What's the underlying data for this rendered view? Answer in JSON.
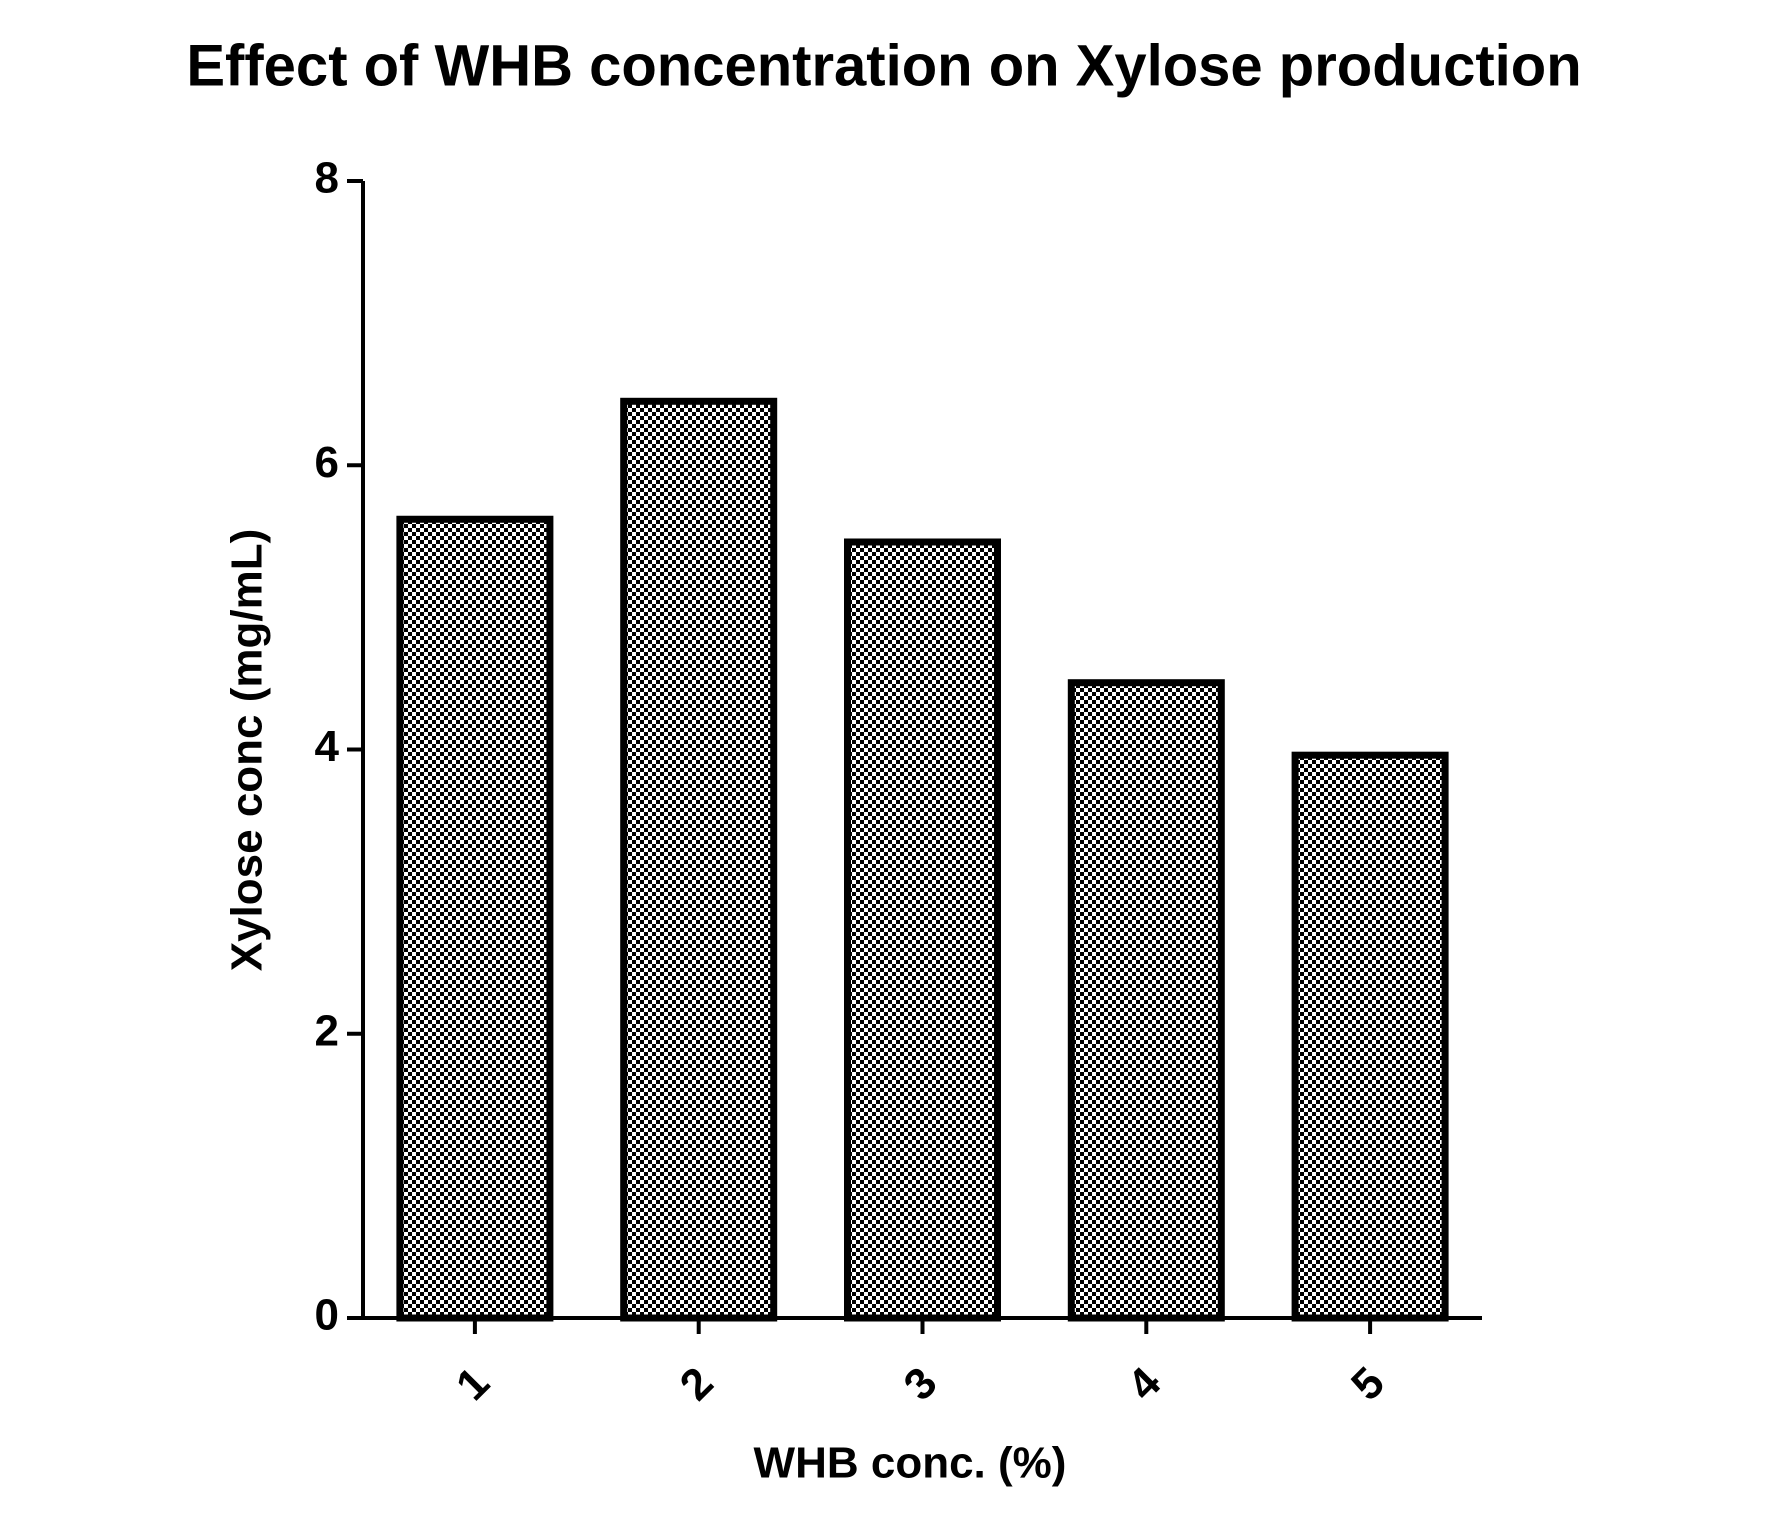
{
  "chart_data": {
    "type": "bar",
    "title": "Effect of WHB concentration on Xylose production",
    "x_label": "WHB conc. (%)",
    "y_label": "Xylose conc (mg/mL)",
    "categories": [
      "1",
      "2",
      "3",
      "4",
      "5"
    ],
    "values": [
      5.62,
      6.45,
      5.46,
      4.47,
      3.96
    ],
    "color": "#000000",
    "ylim": [
      0,
      8
    ],
    "yticks": [
      0,
      2,
      4,
      6,
      8
    ],
    "grid": false
  }
}
